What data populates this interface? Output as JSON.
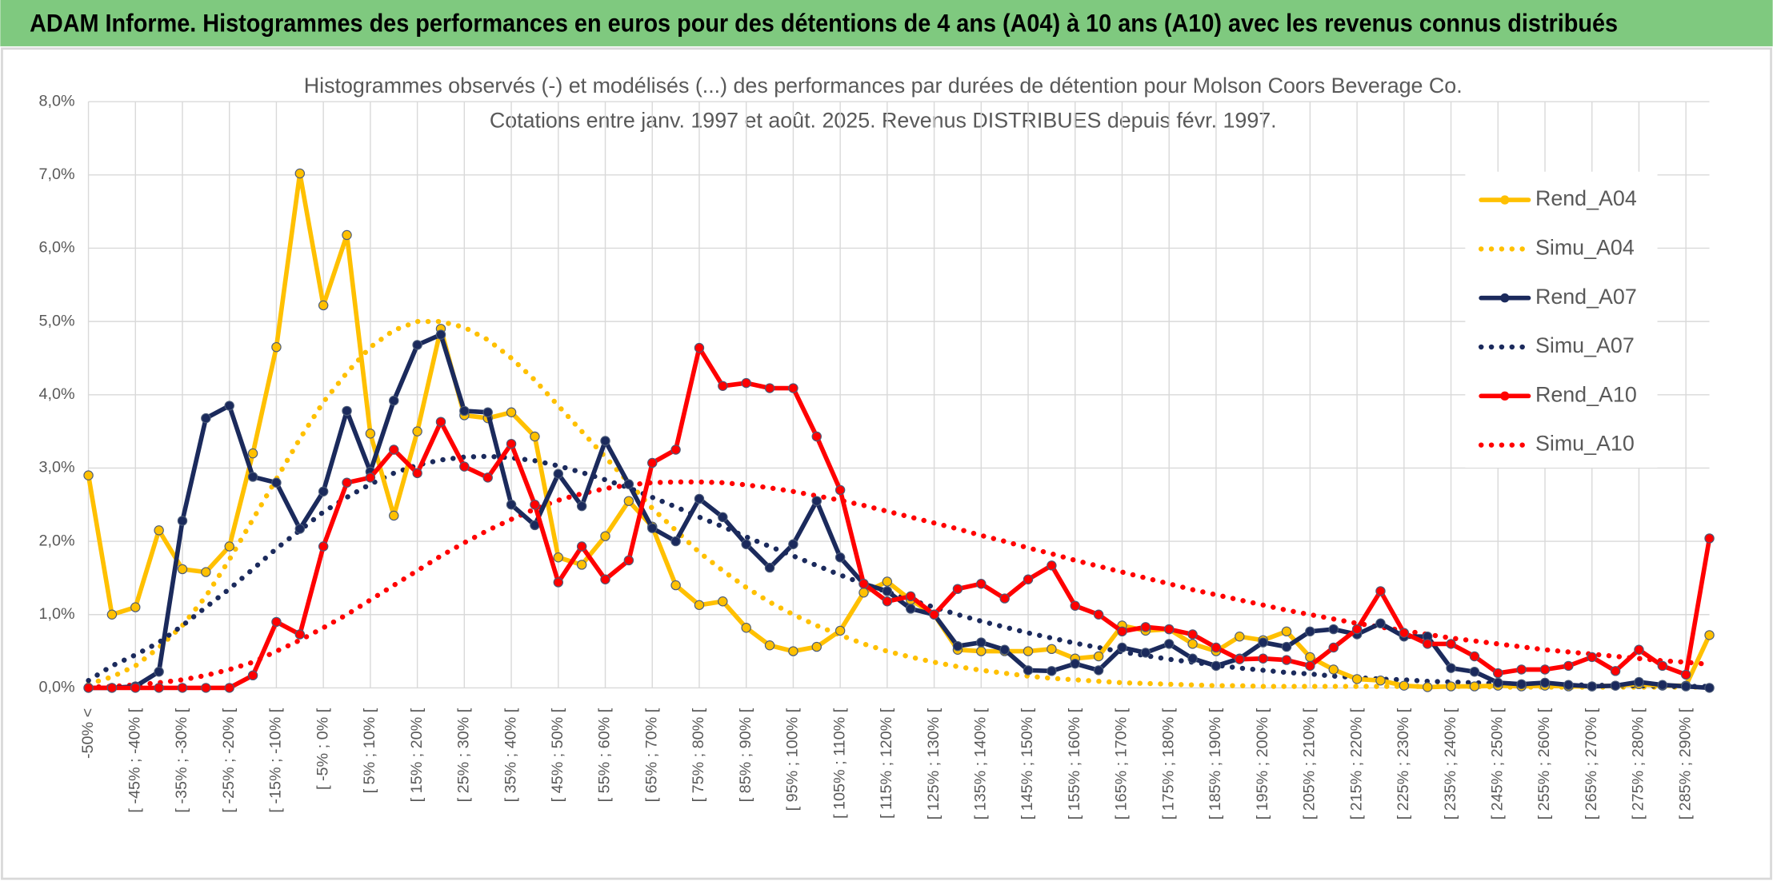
{
  "header": {
    "title": "ADAM Informe. Histogrammes des performances en euros pour des détentions de 4 ans (A04) à 10 ans (A10) avec les revenus connus distribués"
  },
  "chart_data": {
    "type": "line",
    "title": "Histogrammes observés (-) et modélisés (...) des performances par durées de détention pour Molson Coors Beverage Co.",
    "subtitle": "Cotations entre janv. 1997 et août. 2025. Revenus DISTRIBUES depuis févr. 1997.",
    "categories": [
      "-50% <",
      null,
      "[ -45% ; -40% [",
      null,
      "[ -35% ; -30% [",
      null,
      "[ -25% ; -20% [",
      null,
      "[ -15% ; -10% [",
      null,
      "[ -5% ; 0% [",
      null,
      "[ 5% ; 10% [",
      null,
      "[ 15% ; 20% [",
      null,
      "[ 25% ; 30% [",
      null,
      "[ 35% ; 40% [",
      null,
      "[ 45% ; 50% [",
      null,
      "[ 55% ; 60% [",
      null,
      "[ 65% ; 70% [",
      null,
      "[ 75% ; 80% [",
      null,
      "[ 85% ; 90% [",
      null,
      "[ 95% ; 100% [",
      null,
      "[ 105% ; 110% [",
      null,
      "[ 115% ; 120% [",
      null,
      "[ 125% ; 130% [",
      null,
      "[ 135% ; 140% [",
      null,
      "[ 145% ; 150% [",
      null,
      "[ 155% ; 160% [",
      null,
      "[ 165% ; 170% [",
      null,
      "[ 175% ; 180% [",
      null,
      "[ 185% ; 190% [",
      null,
      "[ 195% ; 200% [",
      null,
      "[ 205% ; 210% [",
      null,
      "[ 215% ; 220% [",
      null,
      "[ 225% ; 230% [",
      null,
      "[ 235% ; 240% [",
      null,
      "[ 245% ; 250% [",
      null,
      "[ 255% ; 260% [",
      null,
      "[ 265% ; 270% [",
      null,
      "[ 275% ; 280% [",
      null,
      "[ 285% ; 290% [",
      null
    ],
    "ylim": [
      0,
      8
    ],
    "yticks": [
      {
        "value": 0,
        "label": "0,0%"
      },
      {
        "value": 1,
        "label": "1,0%"
      },
      {
        "value": 2,
        "label": "2,0%"
      },
      {
        "value": 3,
        "label": "3,0%"
      },
      {
        "value": 4,
        "label": "4,0%"
      },
      {
        "value": 5,
        "label": "5,0%"
      },
      {
        "value": 6,
        "label": "6,0%"
      },
      {
        "value": 7,
        "label": "7,0%"
      },
      {
        "value": 8,
        "label": "8,0%"
      }
    ],
    "grid": true,
    "legend": "right",
    "series": [
      {
        "name": "Rend_A04",
        "color": "#ffc000",
        "line_style": "solid",
        "markers": true,
        "values": [
          2.9,
          1.0,
          1.1,
          2.15,
          1.62,
          1.58,
          1.93,
          3.2,
          4.65,
          7.02,
          5.22,
          6.18,
          3.47,
          2.35,
          3.5,
          4.9,
          3.72,
          3.68,
          3.76,
          3.43,
          1.78,
          1.68,
          2.07,
          2.55,
          2.2,
          1.4,
          1.13,
          1.18,
          0.82,
          0.58,
          0.5,
          0.56,
          0.78,
          1.3,
          1.45,
          1.2,
          1.0,
          0.52,
          0.5,
          0.5,
          0.5,
          0.53,
          0.4,
          0.43,
          0.85,
          0.78,
          0.8,
          0.6,
          0.5,
          0.7,
          0.65,
          0.77,
          0.42,
          0.25,
          0.12,
          0.1,
          0.03,
          0.01,
          0.02,
          0.02,
          0.03,
          0.02,
          0.03,
          0.02,
          0.02,
          0.03,
          0.05,
          0.03,
          0.03,
          0.72
        ]
      },
      {
        "name": "Simu_A04",
        "color": "#ffc000",
        "line_style": "dotted",
        "markers": false,
        "values": [
          0.05,
          0.15,
          0.3,
          0.55,
          0.85,
          1.25,
          1.75,
          2.3,
          2.85,
          3.4,
          3.9,
          4.3,
          4.65,
          4.88,
          5.0,
          5.0,
          4.92,
          4.75,
          4.5,
          4.2,
          3.85,
          3.5,
          3.15,
          2.8,
          2.45,
          2.15,
          1.85,
          1.6,
          1.37,
          1.17,
          1.0,
          0.85,
          0.72,
          0.6,
          0.5,
          0.42,
          0.35,
          0.29,
          0.24,
          0.2,
          0.16,
          0.13,
          0.11,
          0.09,
          0.07,
          0.06,
          0.05,
          0.04,
          0.03,
          0.03,
          0.02,
          0.02,
          0.02,
          0.02,
          0.02,
          0.02,
          0.02,
          0.02,
          0.02,
          0.02,
          0.01,
          0.01,
          0.01,
          0.01,
          0.01,
          0.01,
          0.01,
          0.01,
          0.01,
          0.01
        ]
      },
      {
        "name": "Rend_A07",
        "color": "#1b2a5c",
        "line_style": "solid",
        "markers": true,
        "values": [
          0,
          0,
          0.02,
          0.22,
          2.28,
          3.68,
          3.85,
          2.88,
          2.8,
          2.17,
          2.68,
          3.78,
          2.95,
          3.92,
          4.68,
          4.82,
          3.78,
          3.76,
          2.5,
          2.22,
          2.92,
          2.48,
          3.37,
          2.78,
          2.18,
          2.0,
          2.58,
          2.33,
          1.96,
          1.64,
          1.96,
          2.55,
          1.78,
          1.42,
          1.32,
          1.08,
          1.0,
          0.57,
          0.62,
          0.52,
          0.24,
          0.23,
          0.33,
          0.24,
          0.55,
          0.48,
          0.6,
          0.4,
          0.3,
          0.4,
          0.62,
          0.56,
          0.77,
          0.8,
          0.73,
          0.88,
          0.7,
          0.7,
          0.27,
          0.22,
          0.07,
          0.05,
          0.07,
          0.04,
          0.02,
          0.03,
          0.08,
          0.04,
          0.02,
          0.0
        ]
      },
      {
        "name": "Simu_A07",
        "color": "#1b2a5c",
        "line_style": "dotted",
        "markers": false,
        "values": [
          0.1,
          0.3,
          0.45,
          0.62,
          0.85,
          1.1,
          1.35,
          1.62,
          1.9,
          2.15,
          2.4,
          2.6,
          2.78,
          2.93,
          3.04,
          3.11,
          3.15,
          3.16,
          3.14,
          3.1,
          3.03,
          2.94,
          2.84,
          2.73,
          2.6,
          2.47,
          2.33,
          2.2,
          2.06,
          1.93,
          1.8,
          1.67,
          1.54,
          1.42,
          1.31,
          1.2,
          1.1,
          1.0,
          0.91,
          0.83,
          0.75,
          0.68,
          0.61,
          0.55,
          0.49,
          0.44,
          0.39,
          0.35,
          0.31,
          0.27,
          0.24,
          0.21,
          0.19,
          0.16,
          0.14,
          0.12,
          0.11,
          0.09,
          0.08,
          0.07,
          0.06,
          0.05,
          0.05,
          0.04,
          0.04,
          0.03,
          0.03,
          0.02,
          0.02,
          0.02
        ]
      },
      {
        "name": "Rend_A10",
        "color": "#ff0000",
        "line_style": "solid",
        "markers": true,
        "values": [
          0,
          0,
          0,
          0,
          0,
          0,
          0,
          0.17,
          0.9,
          0.73,
          1.93,
          2.8,
          2.87,
          3.25,
          2.93,
          3.63,
          3.02,
          2.87,
          3.33,
          2.5,
          1.44,
          1.93,
          1.48,
          1.74,
          3.07,
          3.25,
          4.64,
          4.12,
          4.16,
          4.09,
          4.09,
          3.43,
          2.7,
          1.42,
          1.18,
          1.25,
          1.0,
          1.35,
          1.42,
          1.22,
          1.48,
          1.67,
          1.12,
          1.0,
          0.77,
          0.83,
          0.8,
          0.73,
          0.55,
          0.39,
          0.4,
          0.38,
          0.3,
          0.55,
          0.8,
          1.32,
          0.75,
          0.6,
          0.6,
          0.43,
          0.2,
          0.25,
          0.25,
          0.3,
          0.42,
          0.23,
          0.52,
          0.3,
          0.18,
          2.04
        ]
      },
      {
        "name": "Simu_A10",
        "color": "#ff0000",
        "line_style": "dotted",
        "markers": false,
        "values": [
          0.01,
          0.02,
          0.04,
          0.07,
          0.11,
          0.17,
          0.25,
          0.35,
          0.5,
          0.65,
          0.82,
          1.0,
          1.2,
          1.4,
          1.6,
          1.8,
          1.98,
          2.15,
          2.3,
          2.44,
          2.56,
          2.65,
          2.72,
          2.77,
          2.8,
          2.81,
          2.81,
          2.8,
          2.77,
          2.73,
          2.68,
          2.62,
          2.56,
          2.49,
          2.41,
          2.33,
          2.25,
          2.17,
          2.08,
          2.0,
          1.91,
          1.83,
          1.74,
          1.66,
          1.58,
          1.5,
          1.42,
          1.34,
          1.27,
          1.2,
          1.13,
          1.06,
          1.0,
          0.94,
          0.88,
          0.83,
          0.78,
          0.73,
          0.68,
          0.64,
          0.6,
          0.56,
          0.52,
          0.49,
          0.46,
          0.43,
          0.4,
          0.37,
          0.35,
          0.32
        ]
      }
    ]
  }
}
